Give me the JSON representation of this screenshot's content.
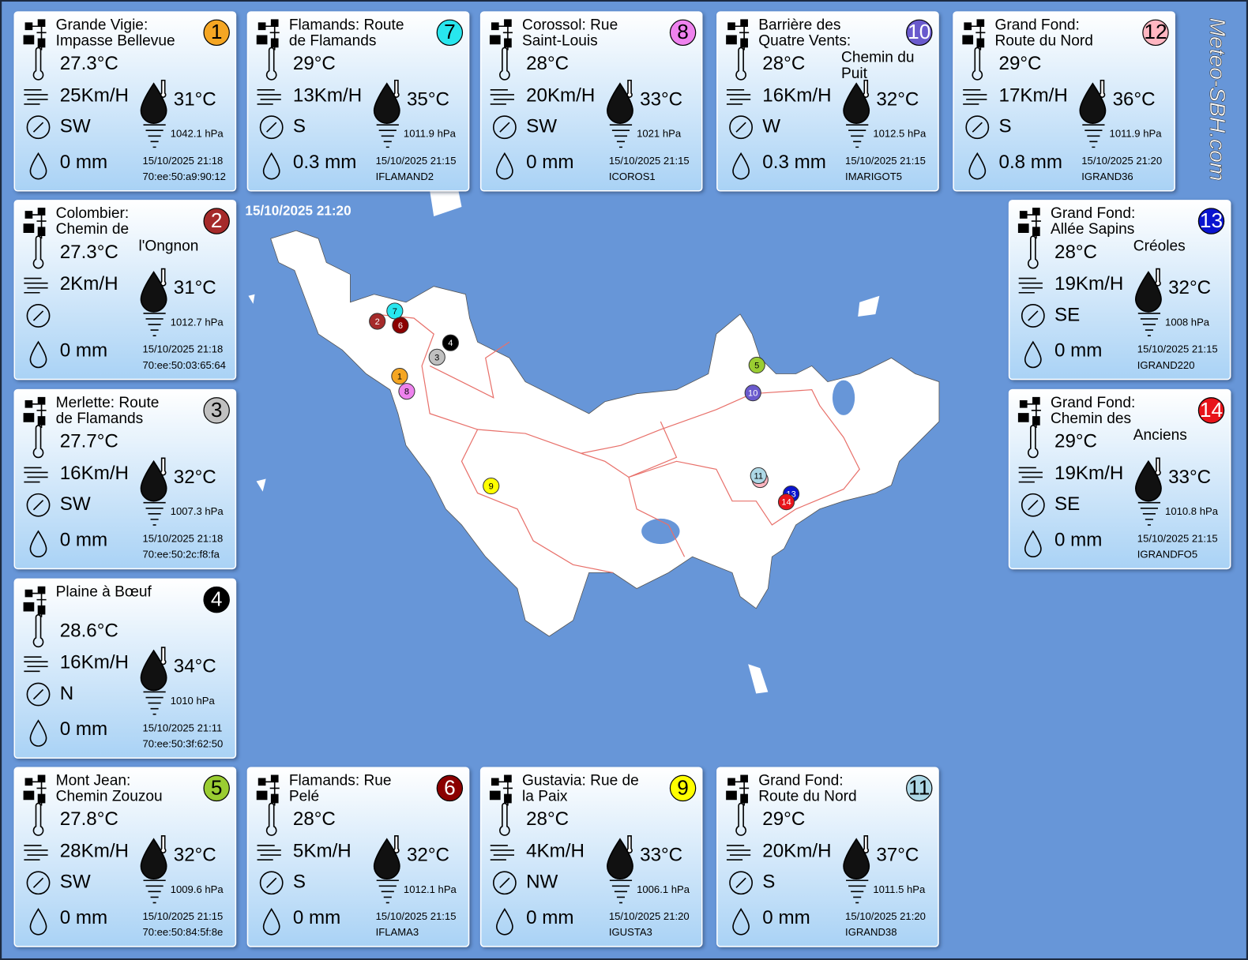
{
  "header": {
    "timestamp": "15/10/2025 21:20",
    "brand": "Meteo-SBH.com"
  },
  "stations": [
    {
      "number": "1",
      "color": "#f5a623",
      "name": [
        "Grande Vigie:",
        "Impasse Bellevue"
      ],
      "temperature": "27.3°C",
      "wind": "25Km/H",
      "feels_like": "31°C",
      "direction": "SW",
      "pressure": "1042.1 hPa",
      "rain": "0 mm",
      "datetime": "15/10/2025 21:18",
      "id": "70:ee:50:a9:90:12"
    },
    {
      "number": "7",
      "color": "#28e6ee",
      "name": [
        "Flamands: Route",
        "de Flamands"
      ],
      "temperature": "29°C",
      "wind": "13Km/H",
      "feels_like": "35°C",
      "direction": "S",
      "pressure": "1011.9 hPa",
      "rain": "0.3 mm",
      "datetime": "15/10/2025 21:15",
      "id": "IFLAMAND2"
    },
    {
      "number": "8",
      "color": "#ee82ee",
      "name": [
        "Corossol: Rue",
        "Saint-Louis"
      ],
      "temperature": "28°C",
      "wind": "20Km/H",
      "feels_like": "33°C",
      "direction": "SW",
      "pressure": "1021 hPa",
      "rain": "0 mm",
      "datetime": "15/10/2025 21:15",
      "id": "ICOROS1"
    },
    {
      "number": "10",
      "color": "#6a5acd",
      "name": [
        "Barrière des",
        "Quatre Vents:"
      ],
      "name_overflow": [
        "Chemin du",
        "Puit"
      ],
      "temperature": "28°C",
      "wind": "16Km/H",
      "feels_like": "32°C",
      "direction": "W",
      "pressure": "1012.5 hPa",
      "rain": "0.3 mm",
      "datetime": "15/10/2025 21:15",
      "id": "IMARIGOT5"
    },
    {
      "number": "12",
      "color": "#ffb6c1",
      "name": [
        "Grand Fond:",
        "Route du Nord"
      ],
      "temperature": "29°C",
      "wind": "17Km/H",
      "feels_like": "36°C",
      "direction": "S",
      "pressure": "1011.9 hPa",
      "rain": "0.8 mm",
      "datetime": "15/10/2025 21:20",
      "id": "IGRAND36"
    },
    {
      "number": "2",
      "color": "#a52a2a",
      "name": [
        "Colombier:",
        "Chemin de"
      ],
      "name_overflow": [
        "l'Ongnon"
      ],
      "temperature": "27.3°C",
      "wind": "2Km/H",
      "feels_like": "31°C",
      "pressure": "1012.7 hPa",
      "rain": "0 mm",
      "datetime": "15/10/2025 21:18",
      "id": "70:ee:50:03:65:64"
    },
    {
      "number": "13",
      "color": "#0a14d0",
      "name": [
        "Grand Fond:",
        "Allée Sapins"
      ],
      "name_overflow": [
        "Créoles"
      ],
      "temperature": "28°C",
      "wind": "19Km/H",
      "feels_like": "32°C",
      "direction": "SE",
      "pressure": "1008 hPa",
      "rain": "0 mm",
      "datetime": "15/10/2025 21:15",
      "id": "IGRAND220"
    },
    {
      "number": "3",
      "color": "#c0c0c0",
      "name": [
        "Merlette: Route",
        "de Flamands"
      ],
      "temperature": "27.7°C",
      "wind": "16Km/H",
      "feels_like": "32°C",
      "direction": "SW",
      "pressure": "1007.3 hPa",
      "rain": "0 mm",
      "datetime": "15/10/2025 21:18",
      "id": "70:ee:50:2c:f8:fa"
    },
    {
      "number": "14",
      "color": "#e8141a",
      "name": [
        "Grand Fond:",
        "Chemin des"
      ],
      "name_overflow": [
        "Anciens"
      ],
      "temperature": "29°C",
      "wind": "19Km/H",
      "feels_like": "33°C",
      "direction": "SE",
      "pressure": "1010.8 hPa",
      "rain": "0 mm",
      "datetime": "15/10/2025 21:15",
      "id": "IGRANDFO5"
    },
    {
      "number": "4",
      "color": "#000000",
      "name": [
        "Plaine à Bœuf"
      ],
      "temperature": "28.6°C",
      "wind": "16Km/H",
      "feels_like": "34°C",
      "direction": "N",
      "pressure": "1010 hPa",
      "rain": "0 mm",
      "datetime": "15/10/2025 21:11",
      "id": "70:ee:50:3f:62:50"
    },
    {
      "number": "5",
      "color": "#9acd32",
      "name": [
        "Mont Jean:",
        "Chemin Zouzou"
      ],
      "temperature": "27.8°C",
      "wind": "28Km/H",
      "feels_like": "32°C",
      "direction": "SW",
      "pressure": "1009.6 hPa",
      "rain": "0 mm",
      "datetime": "15/10/2025 21:15",
      "id": "70:ee:50:84:5f:8e"
    },
    {
      "number": "6",
      "color": "#8b0000",
      "name": [
        "Flamands: Rue",
        "Pelé"
      ],
      "temperature": "28°C",
      "wind": "5Km/H",
      "feels_like": "32°C",
      "direction": "S",
      "pressure": "1012.1 hPa",
      "rain": "0 mm",
      "datetime": "15/10/2025 21:15",
      "id": "IFLAMA3"
    },
    {
      "number": "9",
      "color": "#ffff00",
      "name": [
        "Gustavia: Rue de",
        "la Paix"
      ],
      "temperature": "28°C",
      "wind": "4Km/H",
      "feels_like": "33°C",
      "direction": "NW",
      "pressure": "1006.1 hPa",
      "rain": "0 mm",
      "datetime": "15/10/2025 21:20",
      "id": "IGUSTA3"
    },
    {
      "number": "11",
      "color": "#add8e6",
      "name": [
        "Grand Fond:",
        "Route du Nord"
      ],
      "temperature": "29°C",
      "wind": "20Km/H",
      "feels_like": "37°C",
      "direction": "S",
      "pressure": "1011.5 hPa",
      "rain": "0 mm",
      "datetime": "15/10/2025 21:20",
      "id": "IGRAND38"
    }
  ]
}
